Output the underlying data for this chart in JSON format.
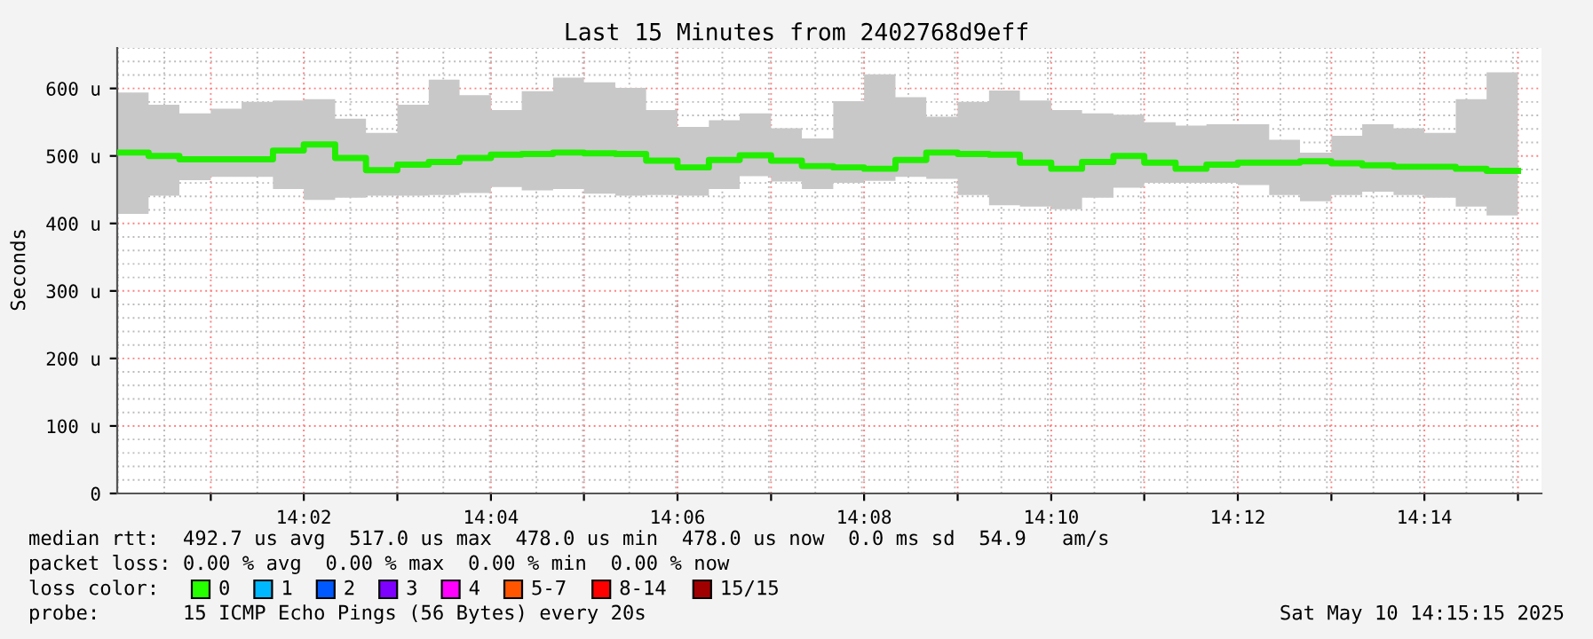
{
  "chart_data": {
    "type": "step",
    "title": "Last 15 Minutes from 2402768d9eff",
    "ylabel": "Seconds",
    "x": [
      14.0,
      14.0056,
      14.0111,
      14.0167,
      14.0222,
      14.0278,
      14.0333,
      14.0389,
      14.0444,
      14.05,
      14.0556,
      14.0611,
      14.0667,
      14.0722,
      14.0778,
      14.0833,
      14.0889,
      14.0944,
      14.1,
      14.1056,
      14.1111,
      14.1167,
      14.1222,
      14.1278,
      14.1333,
      14.1389,
      14.1444,
      14.15,
      14.1556,
      14.1611,
      14.1667,
      14.1722,
      14.1778,
      14.1833,
      14.1889,
      14.1944,
      14.2,
      14.2056,
      14.2111,
      14.2167,
      14.2222,
      14.2278,
      14.2333,
      14.2389,
      14.2444,
      14.25
    ],
    "series": [
      {
        "color": "#22ee00",
        "values": [
          505,
          500,
          495,
          495,
          495,
          508,
          517,
          497,
          479,
          487,
          491,
          497,
          502,
          503,
          505,
          504,
          503,
          493,
          483,
          494,
          501,
          493,
          485,
          483,
          481,
          494,
          505,
          503,
          502,
          490,
          481,
          491,
          500,
          490,
          481,
          487,
          490,
          490,
          492,
          489,
          486,
          484,
          484,
          481,
          478,
          478
        ],
        "lower": [
          414,
          441,
          464,
          469,
          469,
          451,
          435,
          438,
          441,
          441,
          442,
          445,
          454,
          449,
          451,
          444,
          441,
          442,
          441,
          451,
          470,
          462,
          451,
          460,
          463,
          469,
          466,
          442,
          427,
          425,
          421,
          438,
          453,
          460,
          460,
          460,
          457,
          442,
          433,
          442,
          447,
          442,
          438,
          425,
          412,
          412
        ],
        "upper": [
          594,
          576,
          563,
          570,
          580,
          582,
          584,
          555,
          534,
          576,
          613,
          590,
          568,
          596,
          616,
          609,
          601,
          568,
          543,
          553,
          563,
          541,
          526,
          581,
          621,
          587,
          558,
          580,
          597,
          582,
          568,
          563,
          561,
          550,
          545,
          547,
          547,
          524,
          505,
          530,
          547,
          541,
          534,
          584,
          624,
          624
        ]
      }
    ],
    "xlim": [
      14.0,
      14.2542
    ],
    "xticks": [
      {
        "value": 14.0167,
        "label": null
      },
      {
        "value": 14.0333,
        "label": "14:02"
      },
      {
        "value": 14.05,
        "label": null
      },
      {
        "value": 14.0667,
        "label": "14:04"
      },
      {
        "value": 14.0833,
        "label": null
      },
      {
        "value": 14.1,
        "label": "14:06"
      },
      {
        "value": 14.1167,
        "label": null
      },
      {
        "value": 14.1333,
        "label": "14:08"
      },
      {
        "value": 14.15,
        "label": null
      },
      {
        "value": 14.1667,
        "label": "14:10"
      },
      {
        "value": 14.1833,
        "label": null
      },
      {
        "value": 14.2,
        "label": "14:12"
      },
      {
        "value": 14.2167,
        "label": null
      },
      {
        "value": 14.2333,
        "label": "14:14"
      },
      {
        "value": 14.25,
        "label": null
      }
    ],
    "ylim": [
      0,
      660
    ],
    "yticks": [
      0,
      {
        "value": 100,
        "label": "100 u"
      },
      {
        "value": 200,
        "label": "200 u"
      },
      {
        "value": 300,
        "label": "300 u"
      },
      {
        "value": 400,
        "label": "400 u"
      },
      {
        "value": 500,
        "label": "500 u"
      },
      {
        "value": 600,
        "label": "600 u"
      }
    ],
    "grid": true,
    "legend": false,
    "annotations": [
      "median rtt:  492.7 us avg  517.0 us max  478.0 us min  478.0 us now  0.0 ms sd  54.9   am/s",
      "packet loss: 0.00 % avg  0.00 % max  0.00 % min  0.00 % now",
      "loss color:",
      "0",
      "1",
      "2",
      "3",
      "4",
      "5-7",
      "8-14",
      "15/15",
      "probe:       15 ICMP Echo Pings (56 Bytes) every 20s",
      "Sat May 10 14:15:15 2025"
    ]
  }
}
